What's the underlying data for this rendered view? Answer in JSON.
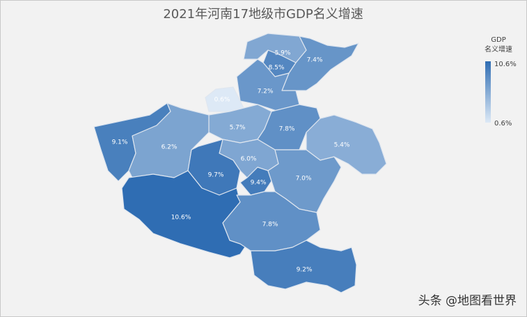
{
  "chart_data": {
    "type": "choropleth",
    "title": "2021年河南17地级市GDP名义增速",
    "values": [
      5.9,
      8.5,
      7.4,
      7.2,
      0.6,
      5.7,
      7.8,
      9.1,
      6.2,
      5.4,
      6.0,
      9.7,
      9.4,
      7.0,
      10.6,
      7.8,
      9.2
    ],
    "value_labels": [
      "5.9%",
      "8.5%",
      "7.4%",
      "7.2%",
      "0.6%",
      "5.7%",
      "7.8%",
      "9.1%",
      "6.2%",
      "5.4%",
      "6.0%",
      "9.7%",
      "9.4%",
      "7.0%",
      "10.6%",
      "7.8%",
      "9.2%"
    ],
    "color_range": [
      "#dde9f6",
      "#2f6db3"
    ],
    "legend": {
      "title": [
        "GDP",
        "名义增速"
      ],
      "max": {
        "value": 10.6,
        "label": "10.6%"
      },
      "min": {
        "value": 0.6,
        "label": "0.6%"
      }
    },
    "watermark": "头条 @地图看世界"
  }
}
